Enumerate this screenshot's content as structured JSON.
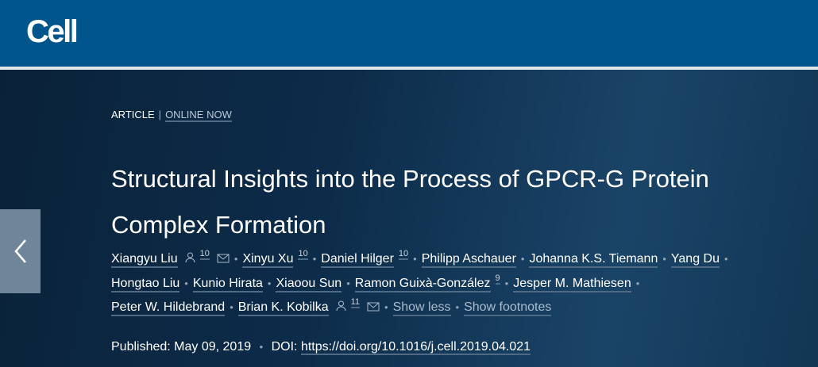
{
  "header": {
    "logo": "Cell",
    "brand_color": "#00558c"
  },
  "article": {
    "type": "ARTICLE",
    "status": "ONLINE NOW",
    "title": "Structural Insights into the Process of GPCR-G Protein Complex Formation"
  },
  "authors": [
    {
      "name": "Xiangyu Liu",
      "person": true,
      "sup": "10",
      "mail": true
    },
    {
      "name": "Xinyu Xu",
      "sup": "10"
    },
    {
      "name": "Daniel Hilger",
      "sup": "10"
    },
    {
      "name": "Philipp Aschauer"
    },
    {
      "name": "Johanna K.S. Tiemann"
    },
    {
      "name": "Yang Du",
      "break": true
    },
    {
      "name": "Hongtao Liu"
    },
    {
      "name": "Kunio Hirata"
    },
    {
      "name": "Xiaoou Sun"
    },
    {
      "name": "Ramon Guixà-González",
      "sup": "9"
    },
    {
      "name": "Jesper M. Mathiesen",
      "break": true
    },
    {
      "name": "Peter W. Hildebrand"
    },
    {
      "name": "Brian K. Kobilka",
      "person": true,
      "sup": "11",
      "mail": true
    }
  ],
  "links": {
    "show_less": "Show less",
    "show_footnotes": "Show footnotes"
  },
  "publication": {
    "published_label": "Published:",
    "published_date": "May 09, 2019",
    "doi_label": "DOI:",
    "doi": "https://doi.org/10.1016/j.cell.2019.04.021"
  }
}
